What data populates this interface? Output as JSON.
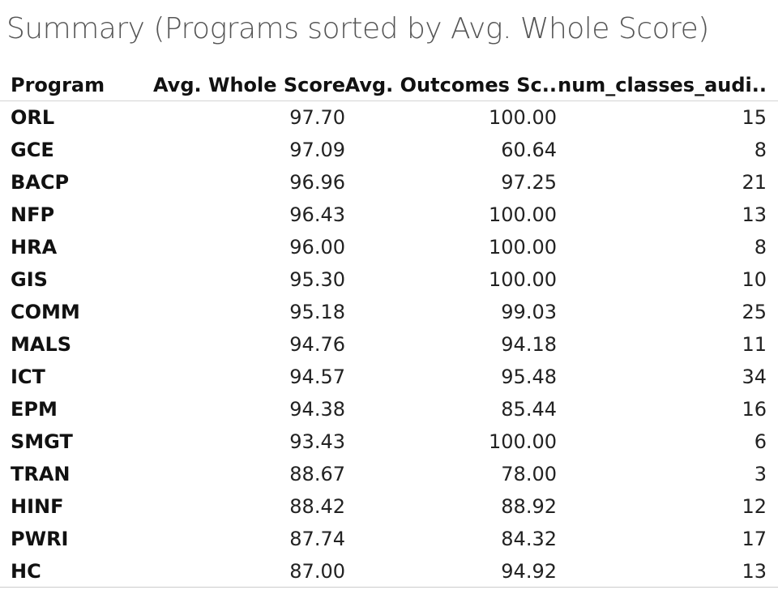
{
  "title": "Summary (Programs sorted by Avg. Whole Score)",
  "chart_data": {
    "type": "table",
    "title": "Summary (Programs sorted by Avg. Whole Score)",
    "columns": [
      "Program",
      "Avg. Whole Score",
      "Avg. Outcomes Sc..",
      "num_classes_audi.."
    ],
    "rows": [
      [
        "ORL",
        "97.70",
        "100.00",
        "15"
      ],
      [
        "GCE",
        "97.09",
        "60.64",
        "8"
      ],
      [
        "BACP",
        "96.96",
        "97.25",
        "21"
      ],
      [
        "NFP",
        "96.43",
        "100.00",
        "13"
      ],
      [
        "HRA",
        "96.00",
        "100.00",
        "8"
      ],
      [
        "GIS",
        "95.30",
        "100.00",
        "10"
      ],
      [
        "COMM",
        "95.18",
        "99.03",
        "25"
      ],
      [
        "MALS",
        "94.76",
        "94.18",
        "11"
      ],
      [
        "ICT",
        "94.57",
        "95.48",
        "34"
      ],
      [
        "EPM",
        "94.38",
        "85.44",
        "16"
      ],
      [
        "SMGT",
        "93.43",
        "100.00",
        "6"
      ],
      [
        "TRAN",
        "88.67",
        "78.00",
        "3"
      ],
      [
        "HINF",
        "88.42",
        "88.92",
        "12"
      ],
      [
        "PWRI",
        "87.74",
        "84.32",
        "17"
      ],
      [
        "HC",
        "87.00",
        "94.92",
        "13"
      ]
    ]
  }
}
